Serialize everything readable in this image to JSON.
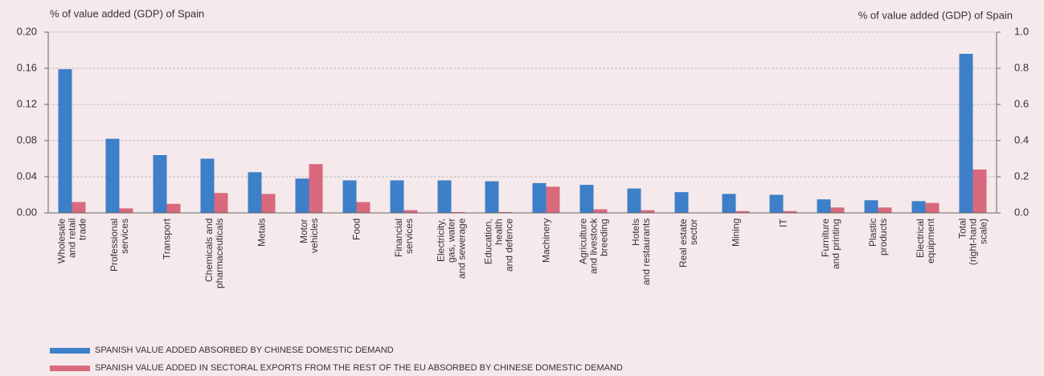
{
  "chart_data": {
    "type": "bar",
    "y_label": "% of value added (GDP) of Spain",
    "y2_label": "% of value added (GDP) of Spain",
    "categories": [
      "Wholesale\nand retail\ntrade",
      "Professional\nservices",
      "Transport",
      "Chemicals and\npharmaceuticals",
      "Metals",
      "Motor\nvehicles",
      "Food",
      "Financial\nservices",
      "Electricity,\ngas, water\nand sewerage",
      "Education,\nhealth\nand defence",
      "Machinery",
      "Agriculture\nand livestock\nbreeding",
      "Hotels\nand restaurants",
      "Real estate\nsector",
      "Mining",
      "IT",
      "Furniture\nand printing",
      "Plastic\nproducts",
      "Electrical\nequipment",
      "Total\n(right-hand\nscale)"
    ],
    "y2_category": 19,
    "series": [
      {
        "name": "SPANISH VALUE ADDED ABSORBED BY CHINESE DOMESTIC DEMAND",
        "color": "#3d7fc8",
        "values": [
          0.159,
          0.082,
          0.064,
          0.06,
          0.045,
          0.038,
          0.036,
          0.036,
          0.036,
          0.035,
          0.033,
          0.031,
          0.027,
          0.023,
          0.021,
          0.02,
          0.015,
          0.014,
          0.013,
          0.88
        ]
      },
      {
        "name": "SPANISH VALUE ADDED IN SECTORAL EXPORTS FROM THE REST OF THE EU ABSORBED BY CHINESE DOMESTIC DEMAND",
        "color": "#d9697c",
        "values": [
          0.012,
          0.005,
          0.01,
          0.022,
          0.021,
          0.054,
          0.012,
          0.003,
          0.001,
          0.001,
          0.029,
          0.004,
          0.003,
          0.0,
          0.002,
          0.002,
          0.006,
          0.006,
          0.011,
          0.24
        ]
      }
    ],
    "ylim": [
      0,
      0.2
    ],
    "yticks": [
      {
        "value": 0,
        "label": "0.00"
      },
      0.04,
      0.08,
      0.12,
      0.16,
      {
        "value": 0.2,
        "label": "0.20"
      }
    ],
    "y2lim": [
      0,
      1
    ],
    "y2ticks": [
      {
        "value": 0,
        "label": "0.0"
      },
      0.2,
      0.4,
      0.6,
      0.8,
      {
        "value": 1,
        "label": "1.0"
      }
    ],
    "grid": true
  }
}
